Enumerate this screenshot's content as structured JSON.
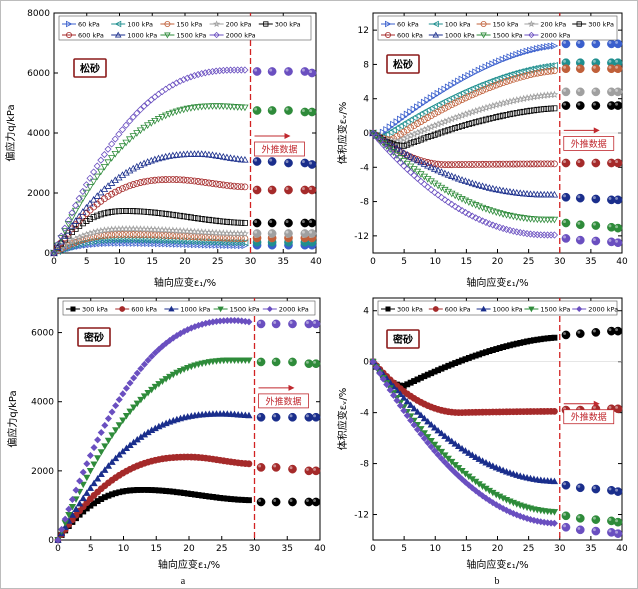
{
  "captions": [
    "a",
    "b"
  ],
  "colors": {
    "p60": "#3a5fcd",
    "p100": "#1f8f8f",
    "p150": "#c0603a",
    "p200": "#a0a0a0",
    "p300": "#000000",
    "p600": "#a52a2a",
    "p1000": "#1a2e8c",
    "p1500": "#2e8b3a",
    "p2000": "#6a4fc0",
    "dashed": "#d22222",
    "note": "#c0282e",
    "labelBorder": "#8b1a1a"
  },
  "chart_data": [
    {
      "id": "loose-q",
      "type": "scatter",
      "panel_label": "松砂",
      "annotation": "外推数据",
      "xlabel": "轴向应变ε₁/%",
      "ylabel": "偏应力q/kPa",
      "xlim": [
        0,
        40
      ],
      "ylim": [
        0,
        8000
      ],
      "xticks": [
        0,
        5,
        10,
        15,
        20,
        25,
        30,
        35,
        40
      ],
      "yticks": [
        0,
        2000,
        4000,
        6000,
        8000
      ],
      "legend_cols": 5,
      "divider_x": 30,
      "series": [
        {
          "name": "60 kPa",
          "color": "#3a5fcd",
          "marker": "triR",
          "open": true,
          "peak": 330,
          "peak_x": 10,
          "end": 250,
          "ext": [
            260,
            260,
            260,
            260,
            260
          ]
        },
        {
          "name": "100 kPa",
          "color": "#1f8f8f",
          "marker": "triL",
          "open": true,
          "peak": 450,
          "peak_x": 10,
          "end": 350,
          "ext": [
            360,
            360,
            360,
            360,
            360
          ]
        },
        {
          "name": "150 kPa",
          "color": "#c0603a",
          "marker": "circle",
          "open": true,
          "peak": 620,
          "peak_x": 11,
          "end": 480,
          "ext": [
            500,
            500,
            500,
            500,
            500
          ]
        },
        {
          "name": "200 kPa",
          "color": "#a0a0a0",
          "marker": "star",
          "open": true,
          "peak": 800,
          "peak_x": 11,
          "end": 640,
          "ext": [
            650,
            650,
            650,
            650,
            650
          ]
        },
        {
          "name": "300 kPa",
          "color": "#000000",
          "marker": "square",
          "open": true,
          "peak": 1400,
          "peak_x": 11,
          "end": 1000,
          "ext": [
            1000,
            1000,
            1000,
            1000,
            1000
          ]
        },
        {
          "name": "600 kPa",
          "color": "#a52a2a",
          "marker": "circle",
          "open": true,
          "peak": 2450,
          "peak_x": 18,
          "end": 2200,
          "ext": [
            2100,
            2100,
            2100,
            2100,
            2100
          ]
        },
        {
          "name": "1000 kPa",
          "color": "#1a2e8c",
          "marker": "triU",
          "open": true,
          "peak": 3300,
          "peak_x": 22,
          "end": 3100,
          "ext": [
            3050,
            3050,
            3000,
            3000,
            2950
          ]
        },
        {
          "name": "1500 kPa",
          "color": "#2e8b3a",
          "marker": "triD",
          "open": true,
          "peak": 4900,
          "peak_x": 25,
          "end": 4850,
          "ext": [
            4750,
            4750,
            4750,
            4700,
            4700
          ]
        },
        {
          "name": "2000 kPa",
          "color": "#6a4fc0",
          "marker": "diamond",
          "open": true,
          "peak": 6100,
          "peak_x": 28,
          "end": 6100,
          "ext": [
            6050,
            6050,
            6050,
            6050,
            6000
          ]
        }
      ]
    },
    {
      "id": "loose-ev",
      "type": "scatter",
      "panel_label": "松砂",
      "annotation": "外推数据",
      "xlabel": "轴向应变ε₁/%",
      "ylabel": "体积应变εᵥ/%",
      "xlim": [
        0,
        40
      ],
      "ylim": [
        -14,
        14
      ],
      "xticks": [
        0,
        5,
        10,
        15,
        20,
        25,
        30,
        35,
        40
      ],
      "yticks": [
        -12,
        -8,
        -4,
        0,
        4,
        8,
        12
      ],
      "legend_cols": 5,
      "divider_x": 30,
      "series": [
        {
          "name": "60 kPa",
          "color": "#3a5fcd",
          "marker": "triR",
          "open": true,
          "end": 10.2,
          "dip": -0.3,
          "dip_x": 1,
          "ext": [
            10.4,
            10.4,
            10.4,
            10.4,
            10.4
          ]
        },
        {
          "name": "100 kPa",
          "color": "#1f8f8f",
          "marker": "triL",
          "open": true,
          "end": 7.9,
          "dip": -0.5,
          "dip_x": 1.5,
          "ext": [
            8.2,
            8.2,
            8.2,
            8.2,
            8.2
          ]
        },
        {
          "name": "150 kPa",
          "color": "#c0603a",
          "marker": "circle",
          "open": true,
          "end": 7.3,
          "dip": -0.8,
          "dip_x": 3,
          "ext": [
            7.5,
            7.5,
            7.5,
            7.5,
            7.5
          ]
        },
        {
          "name": "200 kPa",
          "color": "#a0a0a0",
          "marker": "star",
          "open": true,
          "end": 4.5,
          "dip": -1.0,
          "dip_x": 4,
          "ext": [
            4.8,
            4.8,
            4.8,
            4.8,
            4.8
          ]
        },
        {
          "name": "300 kPa",
          "color": "#000000",
          "marker": "square",
          "open": true,
          "end": 2.9,
          "dip": -1.5,
          "dip_x": 5,
          "ext": [
            3.2,
            3.2,
            3.2,
            3.2,
            3.2
          ]
        },
        {
          "name": "600 kPa",
          "color": "#a52a2a",
          "marker": "circle",
          "open": true,
          "end": -3.6,
          "dip": -3.7,
          "dip_x": 12,
          "ext": [
            -3.5,
            -3.5,
            -3.5,
            -3.5,
            -3.5
          ]
        },
        {
          "name": "1000 kPa",
          "color": "#1a2e8c",
          "marker": "triU",
          "open": true,
          "end": -7.2,
          "dip": -7.2,
          "dip_x": 28,
          "ext": [
            -7.5,
            -7.6,
            -7.7,
            -7.8,
            -7.8
          ]
        },
        {
          "name": "1500 kPa",
          "color": "#2e8b3a",
          "marker": "triD",
          "open": true,
          "end": -10.1,
          "dip": -10.1,
          "dip_x": 28,
          "ext": [
            -10.5,
            -10.7,
            -10.8,
            -11.0,
            -11.1
          ]
        },
        {
          "name": "2000 kPa",
          "color": "#6a4fc0",
          "marker": "diamond",
          "open": true,
          "end": -11.9,
          "dip": -11.9,
          "dip_x": 28,
          "ext": [
            -12.3,
            -12.5,
            -12.6,
            -12.7,
            -12.8
          ]
        }
      ]
    },
    {
      "id": "dense-q",
      "type": "scatter",
      "panel_label": "密砂",
      "annotation": "外推数据",
      "xlabel": "轴向应变ε₁/%",
      "ylabel": "偏应力q/kPa",
      "xlim": [
        0,
        40
      ],
      "ylim": [
        0,
        7000
      ],
      "xticks": [
        0,
        5,
        10,
        15,
        20,
        25,
        30,
        35,
        40
      ],
      "yticks": [
        0,
        2000,
        4000,
        6000
      ],
      "legend_cols": 5,
      "divider_x": 30,
      "series": [
        {
          "name": "300 kPa",
          "color": "#000000",
          "marker": "square",
          "open": false,
          "peak": 1450,
          "peak_x": 13,
          "end": 1150,
          "ext": [
            1100,
            1100,
            1100,
            1100,
            1100
          ]
        },
        {
          "name": "600 kPa",
          "color": "#a52a2a",
          "marker": "circle",
          "open": false,
          "peak": 2400,
          "peak_x": 20,
          "end": 2200,
          "ext": [
            2100,
            2100,
            2050,
            2000,
            2000
          ]
        },
        {
          "name": "1000 kPa",
          "color": "#1a2e8c",
          "marker": "triU",
          "open": false,
          "peak": 3650,
          "peak_x": 25,
          "end": 3600,
          "ext": [
            3550,
            3550,
            3550,
            3550,
            3550
          ]
        },
        {
          "name": "1500 kPa",
          "color": "#2e8b3a",
          "marker": "triD",
          "open": false,
          "peak": 5200,
          "peak_x": 27,
          "end": 5200,
          "ext": [
            5150,
            5150,
            5150,
            5100,
            5100
          ]
        },
        {
          "name": "2000 kPa",
          "color": "#6a4fc0",
          "marker": "diamond",
          "open": false,
          "peak": 6350,
          "peak_x": 27,
          "end": 6300,
          "ext": [
            6250,
            6250,
            6250,
            6250,
            6250
          ]
        }
      ]
    },
    {
      "id": "dense-ev",
      "type": "scatter",
      "panel_label": "密砂",
      "annotation": "外推数据",
      "xlabel": "轴向应变ε₁/%",
      "ylabel": "体积应变εᵥ/%",
      "xlim": [
        0,
        40
      ],
      "ylim": [
        -14,
        5
      ],
      "xticks": [
        0,
        5,
        10,
        15,
        20,
        25,
        30,
        35,
        40
      ],
      "yticks": [
        -12,
        -8,
        -4,
        0,
        4
      ],
      "legend_cols": 5,
      "divider_x": 30,
      "series": [
        {
          "name": "300 kPa",
          "color": "#000000",
          "marker": "square",
          "open": false,
          "end": 1.9,
          "dip": -1.9,
          "dip_x": 5,
          "ext": [
            2.1,
            2.2,
            2.3,
            2.4,
            2.4
          ]
        },
        {
          "name": "600 kPa",
          "color": "#a52a2a",
          "marker": "circle",
          "open": false,
          "end": -3.9,
          "dip": -4.0,
          "dip_x": 14,
          "ext": [
            -3.8,
            -3.8,
            -3.7,
            -3.7,
            -3.7
          ]
        },
        {
          "name": "1000 kPa",
          "color": "#1a2e8c",
          "marker": "triU",
          "open": false,
          "end": -9.4,
          "dip": -9.4,
          "dip_x": 30,
          "ext": [
            -9.7,
            -9.9,
            -10.0,
            -10.1,
            -10.2
          ]
        },
        {
          "name": "1500 kPa",
          "color": "#2e8b3a",
          "marker": "triD",
          "open": false,
          "end": -11.8,
          "dip": -11.8,
          "dip_x": 30,
          "ext": [
            -12.1,
            -12.3,
            -12.4,
            -12.5,
            -12.6
          ]
        },
        {
          "name": "2000 kPa",
          "color": "#6a4fc0",
          "marker": "diamond",
          "open": false,
          "end": -12.7,
          "dip": -12.7,
          "dip_x": 30,
          "ext": [
            -13.0,
            -13.2,
            -13.3,
            -13.4,
            -13.5
          ]
        }
      ]
    }
  ]
}
